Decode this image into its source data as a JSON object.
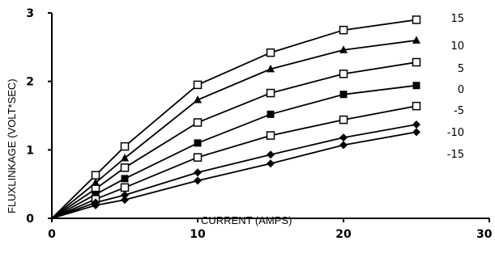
{
  "chart_data": {
    "type": "line",
    "title": "",
    "xlabel": "CURRENT (AMPS)",
    "ylabel": "FLUXLINKAGE (VOLT*SEC)",
    "xlim": [
      0,
      30
    ],
    "ylim": [
      0,
      3
    ],
    "x_ticks": [
      "0",
      "10",
      "20",
      "30"
    ],
    "y_ticks": [
      "0",
      "1",
      "2",
      "3"
    ],
    "grid": false,
    "legend": "right, labels at end of each series",
    "x": [
      0,
      3,
      5,
      10,
      15,
      20,
      25
    ],
    "series": [
      {
        "name": "15",
        "marker": "open-square",
        "values": [
          0,
          0.63,
          1.05,
          1.95,
          2.42,
          2.75,
          2.9
        ]
      },
      {
        "name": "10",
        "marker": "filled-triangle",
        "values": [
          0,
          0.52,
          0.88,
          1.73,
          2.18,
          2.46,
          2.6
        ]
      },
      {
        "name": "5",
        "marker": "open-square",
        "values": [
          0,
          0.43,
          0.74,
          1.4,
          1.83,
          2.11,
          2.28
        ]
      },
      {
        "name": "0",
        "marker": "filled-square",
        "values": [
          0,
          0.35,
          0.58,
          1.1,
          1.52,
          1.81,
          1.94
        ]
      },
      {
        "name": "-5",
        "marker": "open-square",
        "values": [
          0,
          0.28,
          0.45,
          0.89,
          1.21,
          1.44,
          1.64
        ]
      },
      {
        "name": "-10",
        "marker": "filled-diamond",
        "values": [
          0,
          0.23,
          0.34,
          0.67,
          0.93,
          1.18,
          1.37
        ]
      },
      {
        "name": "-15",
        "marker": "filled-diamond",
        "values": [
          0,
          0.19,
          0.27,
          0.55,
          0.8,
          1.07,
          1.26
        ]
      }
    ]
  }
}
